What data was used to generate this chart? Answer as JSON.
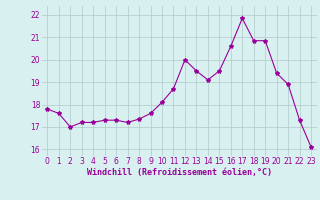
{
  "x": [
    0,
    1,
    2,
    3,
    4,
    5,
    6,
    7,
    8,
    9,
    10,
    11,
    12,
    13,
    14,
    15,
    16,
    17,
    18,
    19,
    20,
    21,
    22,
    23
  ],
  "y": [
    17.8,
    17.6,
    17.0,
    17.2,
    17.2,
    17.3,
    17.3,
    17.2,
    17.35,
    17.6,
    18.1,
    18.7,
    20.0,
    19.5,
    19.1,
    19.5,
    20.6,
    21.85,
    20.85,
    20.85,
    19.4,
    18.9,
    17.3,
    16.1
  ],
  "line_color": "#990099",
  "marker": "*",
  "markersize": 3,
  "linewidth": 0.8,
  "background_color": "#d8f0f0",
  "grid_color": "#b0c8c8",
  "xlabel": "Windchill (Refroidissement éolien,°C)",
  "xlabel_fontsize": 6,
  "ylabel_ticks": [
    16,
    17,
    18,
    19,
    20,
    21,
    22
  ],
  "xtick_labels": [
    "0",
    "1",
    "2",
    "3",
    "4",
    "5",
    "6",
    "7",
    "8",
    "9",
    "10",
    "11",
    "12",
    "13",
    "14",
    "15",
    "16",
    "17",
    "18",
    "19",
    "20",
    "21",
    "22",
    "23"
  ],
  "xlim": [
    -0.5,
    23.5
  ],
  "ylim": [
    15.7,
    22.4
  ],
  "tick_fontsize": 5.5,
  "tick_color": "#990099",
  "label_color": "#990099",
  "fig_width": 3.2,
  "fig_height": 2.0,
  "dpi": 100
}
